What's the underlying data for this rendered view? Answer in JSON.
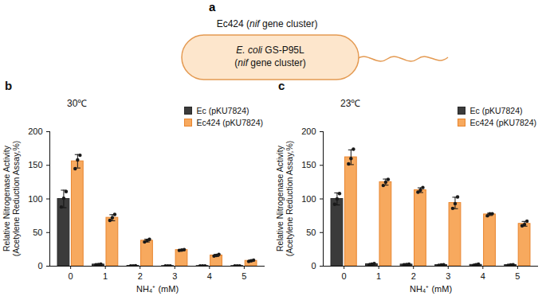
{
  "diagram": {
    "label": "a",
    "title": [
      {
        "text": "Ec424 ("
      },
      {
        "text": "nif",
        "italic": true
      },
      {
        "text": " gene cluster)"
      }
    ],
    "cell_lines": [
      [
        {
          "text": "E. coli",
          "italic": true
        },
        {
          "text": " GS-P95L"
        }
      ],
      [
        {
          "text": "("
        },
        {
          "text": "nif",
          "italic": true
        },
        {
          "text": " gene cluster)"
        }
      ]
    ]
  },
  "chart_data": [
    {
      "type": "bar",
      "annotation": "b",
      "title": "30℃",
      "xlabel": "NH₄⁺ (mM)",
      "ylabel": "Relative Nitrogenase Activity\n(Acetylene Reduction Assay,%)",
      "categories": [
        "0",
        "1",
        "2",
        "3",
        "4",
        "5"
      ],
      "ylim": [
        0,
        200
      ],
      "yticks": [
        0,
        50,
        100,
        150,
        200
      ],
      "legend": "top-right",
      "series": [
        {
          "name": "Ec (pKU7824)",
          "color": "#3b3b3b",
          "values": [
            100,
            2.5,
            0.5,
            0.3,
            0.3,
            0.3
          ],
          "errors": [
            13,
            0.6,
            0.2,
            0.1,
            0.1,
            0.1
          ],
          "points": [
            [
              88,
              101,
              111
            ],
            [
              2,
              2.5,
              3
            ],
            [
              0.4,
              0.5,
              0.6
            ],
            [
              0.3,
              0.3,
              0.3
            ],
            [
              0.3,
              0.3,
              0.3
            ],
            [
              0.3,
              0.3,
              0.3
            ]
          ]
        },
        {
          "name": "Ec424 (pKU7824)",
          "color": "#F7A95E",
          "values": [
            156,
            72,
            38,
            24,
            16,
            8
          ],
          "errors": [
            10,
            4.5,
            2,
            0.6,
            1.5,
            1
          ],
          "points": [
            [
              145,
              158,
              165
            ],
            [
              68,
              72,
              77
            ],
            [
              36,
              38,
              40
            ],
            [
              23.5,
              24,
              24.5
            ],
            [
              15,
              16,
              17.5
            ],
            [
              7,
              8,
              9
            ]
          ]
        }
      ]
    },
    {
      "type": "bar",
      "annotation": "c",
      "title": "23℃",
      "xlabel": "NH₄⁺ (mM)",
      "ylabel": "Relative Nitrogenase Activity\n(Acetylene Reduction Assay,%)",
      "categories": [
        "0",
        "1",
        "2",
        "3",
        "4",
        "5"
      ],
      "ylim": [
        0,
        200
      ],
      "yticks": [
        0,
        50,
        100,
        150,
        200
      ],
      "legend": "top-right",
      "series": [
        {
          "name": "Ec (pKU7824)",
          "color": "#3b3b3b",
          "values": [
            100,
            3,
            2.5,
            1.7,
            2,
            1.7
          ],
          "errors": [
            9,
            1,
            0.6,
            0.6,
            1,
            0.6
          ],
          "points": [
            [
              92,
              100,
              108
            ],
            [
              2,
              3,
              4
            ],
            [
              2,
              2.5,
              3
            ],
            [
              1.2,
              1.7,
              2.2
            ],
            [
              1,
              2,
              3
            ],
            [
              1.2,
              1.7,
              2.2
            ]
          ]
        },
        {
          "name": "Ec424 (pKU7824)",
          "color": "#F7A95E",
          "values": [
            162,
            125,
            113,
            94,
            77,
            63
          ],
          "errors": [
            11,
            4.5,
            3.5,
            8.5,
            1.7,
            3.5
          ],
          "points": [
            [
              152,
              160,
              174
            ],
            [
              120,
              125,
              129
            ],
            [
              110,
              113,
              117
            ],
            [
              86,
              93,
              103
            ],
            [
              75,
              78,
              78
            ],
            [
              60,
              62,
              67
            ]
          ]
        }
      ]
    }
  ]
}
